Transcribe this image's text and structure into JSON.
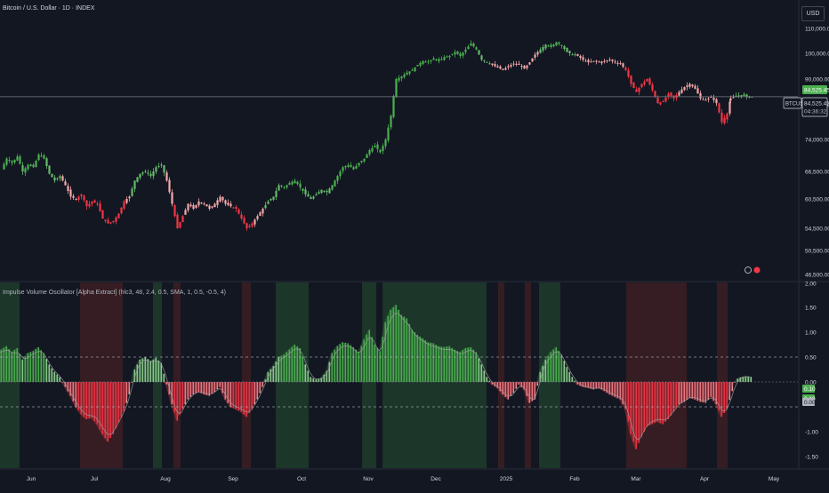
{
  "header": {
    "symbol_title": "Bitcoin / U.S. Dollar · 1D · INDEX",
    "currency_button": "USD"
  },
  "indicator": {
    "title": "Impulse Volume Oscillator [Alpha Extract] (hlc3, 48, 2.4, 0.5, SMA, 1, 0.5, -0.5, 4)"
  },
  "price_axis": {
    "labels": [
      "110,000.00",
      "100,000.00",
      "90,000.00",
      "82,000.00",
      "74,000.00",
      "66,500.00",
      "60,500.00",
      "54,500.00",
      "50,500.00",
      "46,500.00"
    ],
    "badge_price": "84,525.45",
    "badge_symbol": "BTCUSD",
    "badge_last": "84,525.45",
    "badge_countdown": "04:36:32",
    "badge_color": "#4caf50"
  },
  "osc_axis": {
    "labels": [
      "2.00",
      "1.50",
      "1.00",
      "0.50",
      "0.00",
      "-1.00",
      "-1.50"
    ],
    "badge_top": "0.10",
    "badge_mid": "0.10",
    "badge_zero": "0.00"
  },
  "time_axis": {
    "labels": [
      "Jun",
      "Jul",
      "Aug",
      "Sep",
      "Oct",
      "Nov",
      "Dec",
      "2025",
      "Feb",
      "Mar",
      "Apr",
      "May"
    ]
  },
  "colors": {
    "bull": "#4caf50",
    "bull_light": "#a5d6a7",
    "bear": "#f23645",
    "bear_light": "#f5a9a9",
    "bull_zone": "#1e3a2b",
    "bear_zone": "#3a1e24"
  },
  "chart_data": [
    {
      "type": "candlestick",
      "title": "Bitcoin / U.S. Dollar · 1D · INDEX",
      "x_range": [
        "2024-05-27",
        "2025-05-05"
      ],
      "y_range": [
        46500,
        112000
      ],
      "last_price": 84525.45,
      "closes": [
        [
          0,
          67000
        ],
        [
          6,
          69500
        ],
        [
          12,
          68500
        ],
        [
          18,
          70000
        ],
        [
          24,
          66500
        ],
        [
          30,
          68000
        ],
        [
          36,
          67500
        ],
        [
          42,
          70500
        ],
        [
          48,
          69500
        ],
        [
          54,
          66000
        ],
        [
          60,
          64500
        ],
        [
          66,
          65500
        ],
        [
          72,
          63500
        ],
        [
          78,
          61000
        ],
        [
          84,
          60500
        ],
        [
          90,
          61500
        ],
        [
          96,
          59000
        ],
        [
          102,
          60000
        ],
        [
          108,
          59500
        ],
        [
          114,
          56500
        ],
        [
          120,
          55500
        ],
        [
          126,
          56000
        ],
        [
          132,
          57500
        ],
        [
          138,
          60000
        ],
        [
          144,
          61000
        ],
        [
          150,
          64500
        ],
        [
          156,
          66000
        ],
        [
          162,
          66500
        ],
        [
          168,
          65500
        ],
        [
          174,
          67500
        ],
        [
          180,
          68000
        ],
        [
          186,
          64500
        ],
        [
          192,
          59500
        ],
        [
          198,
          54500
        ],
        [
          204,
          57000
        ],
        [
          210,
          59500
        ],
        [
          216,
          58500
        ],
        [
          222,
          60000
        ],
        [
          228,
          59500
        ],
        [
          234,
          58500
        ],
        [
          240,
          59500
        ],
        [
          246,
          61000
        ],
        [
          252,
          59500
        ],
        [
          258,
          59000
        ],
        [
          264,
          58500
        ],
        [
          270,
          56500
        ],
        [
          276,
          54500
        ],
        [
          282,
          55500
        ],
        [
          288,
          57000
        ],
        [
          294,
          58500
        ],
        [
          300,
          60000
        ],
        [
          306,
          61000
        ],
        [
          312,
          63500
        ],
        [
          318,
          63000
        ],
        [
          324,
          64000
        ],
        [
          330,
          64500
        ],
        [
          336,
          63000
        ],
        [
          342,
          61500
        ],
        [
          348,
          60500
        ],
        [
          354,
          61500
        ],
        [
          360,
          62500
        ],
        [
          366,
          62000
        ],
        [
          372,
          63500
        ],
        [
          378,
          65500
        ],
        [
          384,
          67500
        ],
        [
          390,
          68000
        ],
        [
          396,
          67000
        ],
        [
          402,
          68500
        ],
        [
          408,
          69500
        ],
        [
          414,
          71500
        ],
        [
          420,
          72500
        ],
        [
          426,
          71000
        ],
        [
          432,
          74000
        ],
        [
          438,
          79500
        ],
        [
          444,
          90000
        ],
        [
          450,
          91000
        ],
        [
          456,
          92500
        ],
        [
          462,
          93500
        ],
        [
          468,
          95500
        ],
        [
          474,
          97000
        ],
        [
          480,
          96500
        ],
        [
          486,
          98000
        ],
        [
          492,
          97000
        ],
        [
          498,
          98500
        ],
        [
          504,
          99000
        ],
        [
          510,
          100500
        ],
        [
          516,
          99000
        ],
        [
          522,
          101500
        ],
        [
          528,
          104000
        ],
        [
          534,
          101500
        ],
        [
          540,
          97500
        ],
        [
          546,
          96500
        ],
        [
          552,
          95500
        ],
        [
          558,
          94500
        ],
        [
          564,
          93500
        ],
        [
          570,
          95000
        ],
        [
          576,
          96000
        ],
        [
          582,
          95500
        ],
        [
          588,
          94000
        ],
        [
          594,
          96500
        ],
        [
          600,
          99500
        ],
        [
          606,
          101500
        ],
        [
          612,
          103500
        ],
        [
          618,
          102500
        ],
        [
          624,
          104500
        ],
        [
          630,
          103000
        ],
        [
          636,
          100500
        ],
        [
          642,
          99500
        ],
        [
          648,
          99000
        ],
        [
          654,
          97500
        ],
        [
          660,
          96500
        ],
        [
          666,
          97000
        ],
        [
          672,
          96500
        ],
        [
          678,
          97000
        ],
        [
          684,
          97500
        ],
        [
          690,
          96500
        ],
        [
          696,
          96000
        ],
        [
          702,
          93500
        ],
        [
          708,
          88500
        ],
        [
          714,
          86000
        ],
        [
          720,
          88500
        ],
        [
          726,
          90000
        ],
        [
          732,
          86500
        ],
        [
          738,
          82500
        ],
        [
          744,
          83000
        ],
        [
          750,
          85500
        ],
        [
          756,
          84000
        ],
        [
          762,
          86000
        ],
        [
          768,
          87500
        ],
        [
          774,
          88500
        ],
        [
          780,
          87000
        ],
        [
          786,
          84000
        ],
        [
          792,
          83500
        ],
        [
          798,
          84500
        ],
        [
          804,
          82500
        ],
        [
          810,
          78000
        ],
        [
          816,
          80000
        ],
        [
          820,
          84000
        ],
        [
          826,
          84800
        ],
        [
          832,
          85000
        ],
        [
          838,
          84600
        ],
        [
          844,
          84525
        ]
      ]
    },
    {
      "type": "bar",
      "title": "Impulse Volume Oscillator [Alpha Extract]",
      "y_range": [
        -1.65,
        2.0
      ],
      "levels": [
        0.5,
        0,
        -0.5
      ],
      "values": [
        [
          0,
          0.65
        ],
        [
          6,
          0.72
        ],
        [
          12,
          0.6
        ],
        [
          18,
          0.68
        ],
        [
          24,
          0.45
        ],
        [
          30,
          0.58
        ],
        [
          36,
          0.62
        ],
        [
          42,
          0.7
        ],
        [
          48,
          0.58
        ],
        [
          54,
          0.35
        ],
        [
          60,
          0.2
        ],
        [
          66,
          0.1
        ],
        [
          72,
          -0.1
        ],
        [
          78,
          -0.28
        ],
        [
          84,
          -0.5
        ],
        [
          90,
          -0.65
        ],
        [
          96,
          -0.75
        ],
        [
          102,
          -0.72
        ],
        [
          108,
          -0.85
        ],
        [
          114,
          -1.05
        ],
        [
          120,
          -1.2
        ],
        [
          126,
          -1.05
        ],
        [
          132,
          -0.82
        ],
        [
          138,
          -0.6
        ],
        [
          144,
          -0.25
        ],
        [
          150,
          0.25
        ],
        [
          156,
          0.45
        ],
        [
          162,
          0.5
        ],
        [
          168,
          0.42
        ],
        [
          174,
          0.48
        ],
        [
          180,
          0.38
        ],
        [
          186,
          -0.05
        ],
        [
          192,
          -0.45
        ],
        [
          198,
          -0.78
        ],
        [
          204,
          -0.55
        ],
        [
          210,
          -0.35
        ],
        [
          216,
          -0.25
        ],
        [
          222,
          -0.2
        ],
        [
          228,
          -0.25
        ],
        [
          234,
          -0.28
        ],
        [
          240,
          -0.2
        ],
        [
          246,
          -0.1
        ],
        [
          252,
          -0.35
        ],
        [
          258,
          -0.5
        ],
        [
          264,
          -0.55
        ],
        [
          270,
          -0.6
        ],
        [
          276,
          -0.7
        ],
        [
          282,
          -0.55
        ],
        [
          288,
          -0.35
        ],
        [
          294,
          -0.1
        ],
        [
          300,
          0.2
        ],
        [
          306,
          0.32
        ],
        [
          312,
          0.5
        ],
        [
          318,
          0.55
        ],
        [
          324,
          0.65
        ],
        [
          330,
          0.75
        ],
        [
          336,
          0.68
        ],
        [
          342,
          0.35
        ],
        [
          348,
          0.1
        ],
        [
          354,
          0.05
        ],
        [
          360,
          0.08
        ],
        [
          366,
          0.22
        ],
        [
          372,
          0.58
        ],
        [
          378,
          0.72
        ],
        [
          384,
          0.8
        ],
        [
          390,
          0.78
        ],
        [
          396,
          0.7
        ],
        [
          402,
          0.6
        ],
        [
          408,
          0.85
        ],
        [
          414,
          1.05
        ],
        [
          420,
          0.75
        ],
        [
          426,
          0.62
        ],
        [
          432,
          1.2
        ],
        [
          438,
          1.45
        ],
        [
          444,
          1.55
        ],
        [
          450,
          1.35
        ],
        [
          456,
          1.28
        ],
        [
          462,
          1.05
        ],
        [
          468,
          0.95
        ],
        [
          474,
          0.88
        ],
        [
          480,
          0.8
        ],
        [
          486,
          0.78
        ],
        [
          492,
          0.72
        ],
        [
          498,
          0.7
        ],
        [
          504,
          0.72
        ],
        [
          510,
          0.65
        ],
        [
          516,
          0.6
        ],
        [
          522,
          0.68
        ],
        [
          528,
          0.7
        ],
        [
          534,
          0.6
        ],
        [
          540,
          0.35
        ],
        [
          546,
          0.1
        ],
        [
          552,
          -0.05
        ],
        [
          558,
          -0.12
        ],
        [
          564,
          -0.25
        ],
        [
          570,
          -0.35
        ],
        [
          576,
          -0.22
        ],
        [
          582,
          -0.05
        ],
        [
          588,
          -0.15
        ],
        [
          594,
          -0.42
        ],
        [
          600,
          -0.35
        ],
        [
          606,
          0.2
        ],
        [
          612,
          0.45
        ],
        [
          618,
          0.6
        ],
        [
          624,
          0.7
        ],
        [
          630,
          0.55
        ],
        [
          636,
          0.3
        ],
        [
          642,
          0.1
        ],
        [
          648,
          -0.05
        ],
        [
          654,
          -0.1
        ],
        [
          660,
          -0.12
        ],
        [
          666,
          -0.15
        ],
        [
          672,
          -0.12
        ],
        [
          678,
          -0.18
        ],
        [
          684,
          -0.25
        ],
        [
          690,
          -0.3
        ],
        [
          696,
          -0.35
        ],
        [
          702,
          -0.55
        ],
        [
          708,
          -1.05
        ],
        [
          714,
          -1.35
        ],
        [
          720,
          -1.1
        ],
        [
          726,
          -0.9
        ],
        [
          732,
          -0.85
        ],
        [
          738,
          -0.8
        ],
        [
          744,
          -0.85
        ],
        [
          750,
          -0.75
        ],
        [
          756,
          -0.6
        ],
        [
          762,
          -0.45
        ],
        [
          768,
          -0.4
        ],
        [
          774,
          -0.32
        ],
        [
          780,
          -0.35
        ],
        [
          786,
          -0.4
        ],
        [
          792,
          -0.42
        ],
        [
          798,
          -0.3
        ],
        [
          804,
          -0.45
        ],
        [
          810,
          -0.7
        ],
        [
          816,
          -0.55
        ],
        [
          820,
          -0.3
        ],
        [
          826,
          0.05
        ],
        [
          832,
          0.1
        ],
        [
          838,
          0.12
        ],
        [
          844,
          0.1
        ]
      ]
    }
  ]
}
